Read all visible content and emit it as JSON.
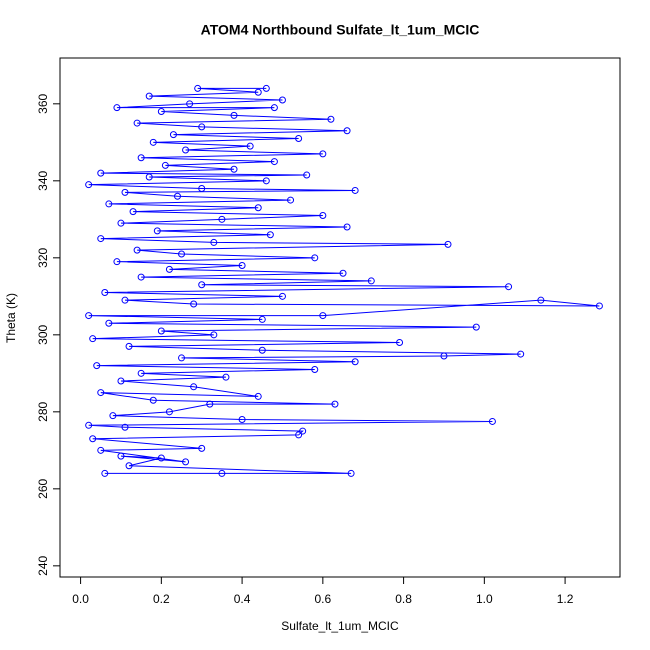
{
  "chart_data": {
    "type": "line",
    "markers": true,
    "title": "ATOM4 Northbound Sulfate_lt_1um_MCIC",
    "xlabel": "Sulfate_lt_1um_MCIC",
    "ylabel": "Theta (K)",
    "xlim": [
      -0.051,
      1.336
    ],
    "ylim": [
      237.1,
      371.9
    ],
    "xticks": [
      {
        "value": 0,
        "label": "0.0"
      },
      0.2,
      0.4,
      0.6,
      0.8,
      {
        "value": 1,
        "label": "1.0"
      },
      1.2
    ],
    "yticks": [
      240,
      260,
      280,
      300,
      320,
      340,
      360
    ],
    "series": [
      {
        "color": "#0000ff",
        "x": [
          0.06,
          0.35,
          0.67,
          0.12,
          0.2,
          0.1,
          0.26,
          0.05,
          0.3,
          0.03,
          0.54,
          0.55,
          0.11,
          0.02,
          1.02,
          0.4,
          0.08,
          0.22,
          0.32,
          0.63,
          0.18,
          0.05,
          0.44,
          0.28,
          0.1,
          0.36,
          0.15,
          0.58,
          0.04,
          0.68,
          0.25,
          0.9,
          1.09,
          0.45,
          0.12,
          0.79,
          0.03,
          0.33,
          0.2,
          0.98,
          0.07,
          0.45,
          0.02,
          0.6,
          1.14,
          1.285,
          0.28,
          0.11,
          0.5,
          0.06,
          1.06,
          0.3,
          0.72,
          0.15,
          0.65,
          0.22,
          0.4,
          0.09,
          0.58,
          0.25,
          0.14,
          0.91,
          0.33,
          0.05,
          0.47,
          0.19,
          0.66,
          0.1,
          0.35,
          0.6,
          0.13,
          0.44,
          0.07,
          0.52,
          0.24,
          0.11,
          0.68,
          0.3,
          0.02,
          0.46,
          0.17,
          0.56,
          0.05,
          0.38,
          0.21,
          0.48,
          0.15,
          0.6,
          0.26,
          0.42,
          0.18,
          0.54,
          0.23,
          0.66,
          0.3,
          0.14,
          0.62,
          0.38,
          0.2,
          0.48,
          0.09,
          0.27,
          0.5,
          0.17,
          0.44,
          0.29,
          0.46
        ],
        "values": [
          264,
          264,
          264,
          266,
          268,
          268.5,
          267,
          270,
          270.5,
          273,
          274,
          275,
          276,
          276.5,
          277.5,
          278,
          279,
          280,
          282,
          282,
          283,
          285,
          284,
          286.5,
          288,
          289,
          290,
          291,
          292,
          293,
          294,
          294.5,
          295,
          296,
          297,
          298,
          299,
          300,
          301,
          302,
          303,
          304,
          305,
          305,
          309,
          307.5,
          308,
          309,
          310,
          311,
          312.5,
          313,
          314,
          315,
          316,
          317,
          318,
          319,
          320,
          321,
          322,
          323.5,
          324,
          325,
          326,
          327,
          328,
          329,
          330,
          331,
          332,
          333,
          334,
          335,
          336,
          337,
          337.5,
          338,
          339,
          340,
          341,
          341.5,
          342,
          343,
          344,
          345,
          346,
          347,
          348,
          349,
          350,
          351,
          352,
          353,
          354,
          355,
          356,
          357,
          358,
          359,
          359,
          360,
          361,
          362,
          363,
          364,
          364
        ]
      }
    ]
  }
}
